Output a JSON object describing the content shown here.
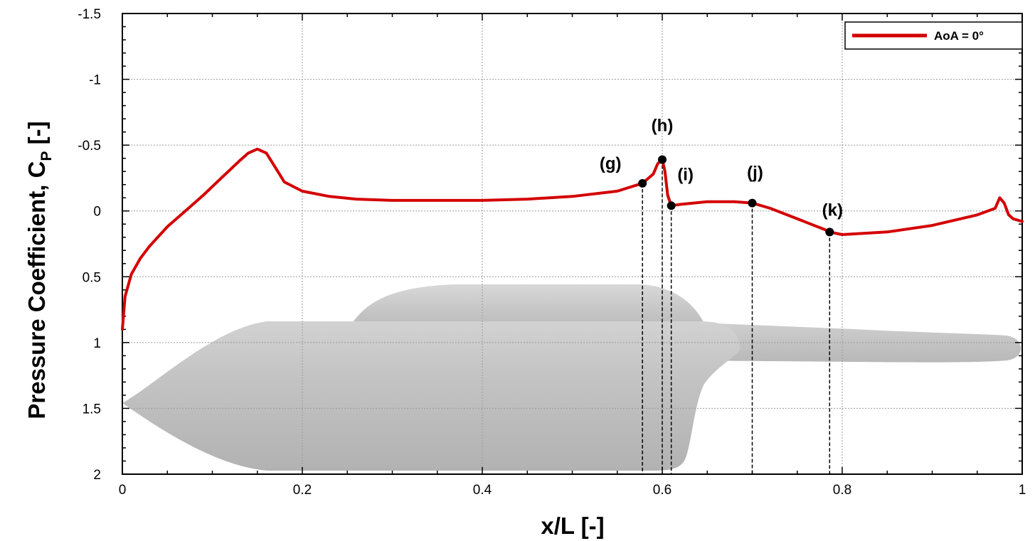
{
  "chart_data": {
    "type": "line",
    "xlabel": "x/L [-]",
    "ylabel": "Pressure Coefficient, C",
    "ylabel_subscript": "P",
    "ylabel_suffix": " [-]",
    "xlim": [
      0,
      1
    ],
    "ylim": [
      2,
      -1.5
    ],
    "y_reversed": true,
    "grid": true,
    "legend_position": "top-right",
    "x_ticks": [
      0,
      0.2,
      0.4,
      0.6,
      0.8,
      1
    ],
    "x_tick_labels": [
      "0",
      "0.2",
      "0.4",
      "0.6",
      "0.8",
      "1"
    ],
    "y_ticks": [
      -1.5,
      -1,
      -0.5,
      0,
      0.5,
      1,
      1.5,
      2
    ],
    "y_tick_labels": [
      "-1.5",
      "-1",
      "-0.5",
      "0",
      "0.5",
      "1",
      "1.5",
      "2"
    ],
    "series": [
      {
        "name": "AoA = 0°",
        "color": "#d40000",
        "x": [
          0,
          0.003,
          0.01,
          0.02,
          0.03,
          0.05,
          0.07,
          0.09,
          0.11,
          0.13,
          0.14,
          0.15,
          0.16,
          0.17,
          0.18,
          0.2,
          0.23,
          0.26,
          0.3,
          0.35,
          0.4,
          0.45,
          0.5,
          0.55,
          0.578,
          0.59,
          0.595,
          0.6,
          0.603,
          0.606,
          0.61,
          0.62,
          0.65,
          0.68,
          0.7,
          0.72,
          0.75,
          0.78,
          0.786,
          0.8,
          0.85,
          0.9,
          0.95,
          0.97,
          0.975,
          0.98,
          0.985,
          0.99,
          1.0
        ],
        "y": [
          0.9,
          0.65,
          0.48,
          0.36,
          0.27,
          0.12,
          0.0,
          -0.12,
          -0.25,
          -0.38,
          -0.44,
          -0.47,
          -0.44,
          -0.33,
          -0.22,
          -0.15,
          -0.11,
          -0.09,
          -0.08,
          -0.08,
          -0.08,
          -0.09,
          -0.11,
          -0.15,
          -0.21,
          -0.28,
          -0.36,
          -0.39,
          -0.3,
          -0.12,
          -0.04,
          -0.05,
          -0.07,
          -0.07,
          -0.06,
          -0.02,
          0.06,
          0.14,
          0.16,
          0.18,
          0.16,
          0.11,
          0.03,
          -0.02,
          -0.1,
          -0.06,
          0.03,
          0.06,
          0.08
        ]
      }
    ],
    "annotations": [
      {
        "label": "(g)",
        "x": 0.578,
        "y": -0.21
      },
      {
        "label": "(h)",
        "x": 0.6,
        "y": -0.39
      },
      {
        "label": "(i)",
        "x": 0.61,
        "y": -0.04
      },
      {
        "label": "(j)",
        "x": 0.7,
        "y": -0.06
      },
      {
        "label": "(k)",
        "x": 0.786,
        "y": 0.16
      }
    ]
  },
  "background_image": "submarine-hull-silhouette"
}
